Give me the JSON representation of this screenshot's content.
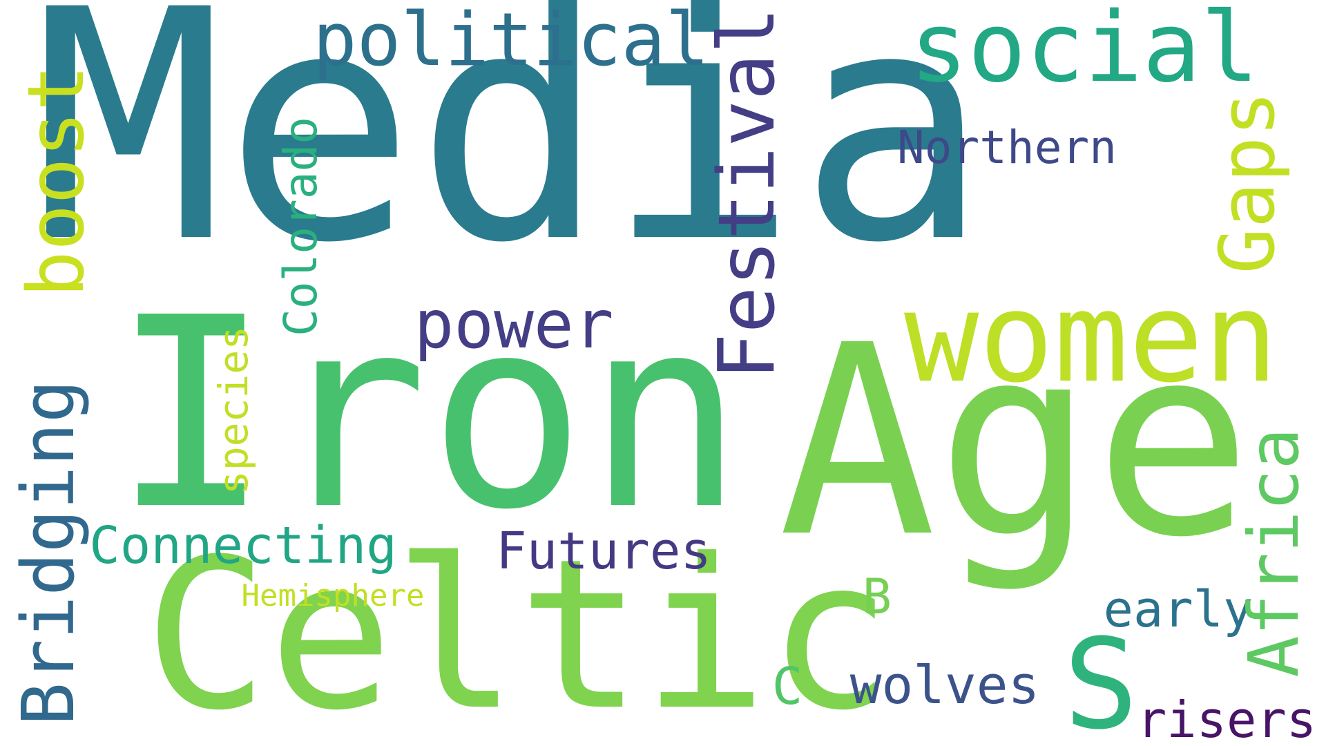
{
  "words": {
    "media": {
      "text": "Media",
      "color": "#2a7b8e"
    },
    "iron": {
      "text": "Iron",
      "color": "#48c16e"
    },
    "age": {
      "text": "Age",
      "color": "#7ad151"
    },
    "celtic": {
      "text": "Celtic",
      "color": "#7fd34e"
    },
    "women": {
      "text": "women",
      "color": "#bddf26"
    },
    "social": {
      "text": "social",
      "color": "#22a884"
    },
    "political": {
      "text": "political",
      "color": "#2d708e"
    },
    "festival": {
      "text": "Festival",
      "color": "#433e85"
    },
    "power": {
      "text": "power",
      "color": "#433e85"
    },
    "boost": {
      "text": "boost",
      "color": "#c8e020"
    },
    "gaps": {
      "text": "Gaps",
      "color": "#c2df23"
    },
    "northern": {
      "text": "Northern",
      "color": "#3e4989"
    },
    "colorado": {
      "text": "Colorado",
      "color": "#2ab07f"
    },
    "species": {
      "text": "species",
      "color": "#c0df25"
    },
    "bridging": {
      "text": "Bridging",
      "color": "#31688e"
    },
    "connecting": {
      "text": "Connecting",
      "color": "#21a685"
    },
    "futures": {
      "text": "Futures",
      "color": "#443a83"
    },
    "hemisphere": {
      "text": "Hemisphere",
      "color": "#c2df23"
    },
    "b": {
      "text": "B",
      "color": "#75d054"
    },
    "early": {
      "text": "early",
      "color": "#2c728e"
    },
    "africa": {
      "text": "Africa",
      "color": "#5ec962"
    },
    "c": {
      "text": "C",
      "color": "#52c569"
    },
    "wolves": {
      "text": "wolves",
      "color": "#3b528b"
    },
    "s": {
      "text": "S",
      "color": "#2eb37c"
    },
    "risers": {
      "text": "risers",
      "color": "#481467"
    }
  }
}
